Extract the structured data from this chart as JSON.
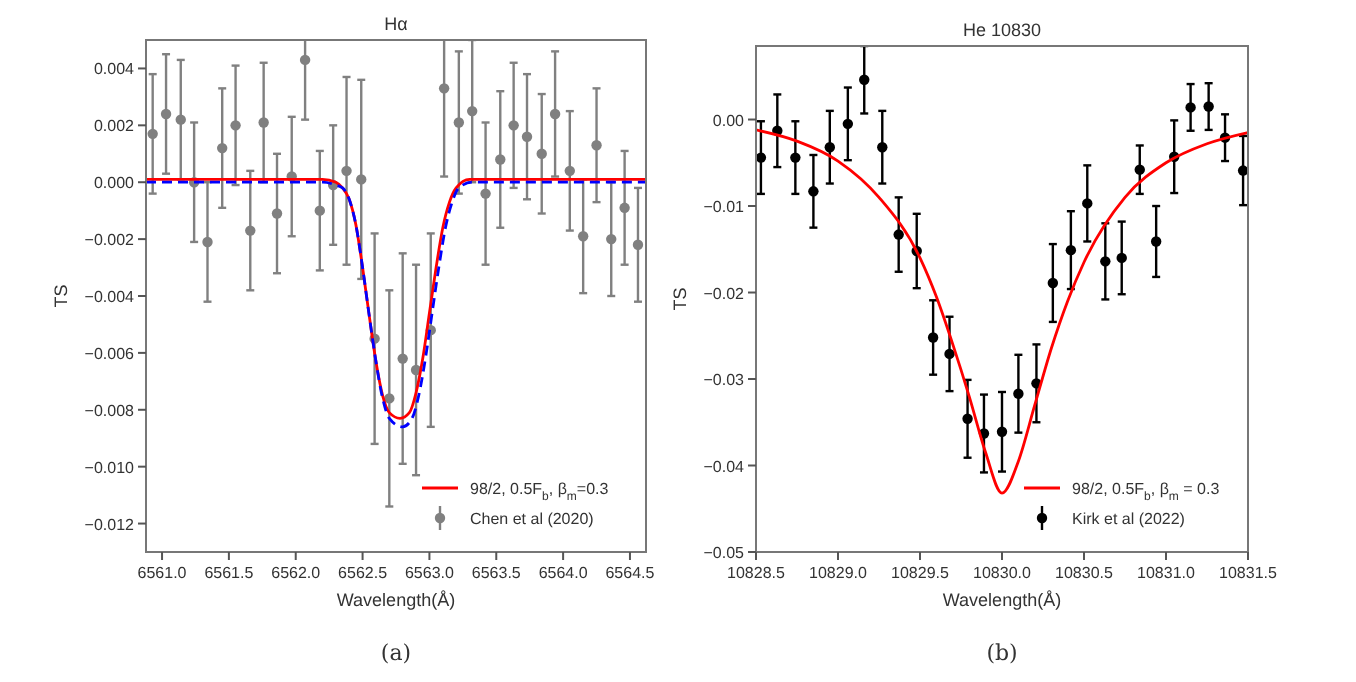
{
  "chart_data": [
    {
      "type": "scatter",
      "title": "Hα",
      "xlabel": "Wavelength(Å)",
      "ylabel": "TS",
      "annotations": [
        "(a)"
      ],
      "xlim": [
        6560.88,
        6564.62
      ],
      "ylim": [
        -0.013,
        0.005
      ],
      "xticks": [
        {
          "value": 6561,
          "label": "6561.0"
        },
        {
          "value": 6561.5,
          "label": "6561.5"
        },
        {
          "value": 6562,
          "label": "6562.0"
        },
        {
          "value": 6562.5,
          "label": "6562.5"
        },
        {
          "value": 6563,
          "label": "6563.0"
        },
        {
          "value": 6563.5,
          "label": "6563.5"
        },
        {
          "value": 6564,
          "label": "6564.0"
        },
        {
          "value": 6564.5,
          "label": "6564.5"
        }
      ],
      "yticks": [
        {
          "value": 0.004,
          "label": "0.004"
        },
        {
          "value": 0.002,
          "label": "0.002"
        },
        {
          "value": 0,
          "label": "0.000"
        },
        {
          "value": -0.002,
          "label": "−0.002"
        },
        {
          "value": -0.004,
          "label": "−0.004"
        },
        {
          "value": -0.006,
          "label": "−0.006"
        },
        {
          "value": -0.008,
          "label": "−0.008"
        },
        {
          "value": -0.01,
          "label": "−0.010"
        },
        {
          "value": -0.012,
          "label": "−0.012"
        }
      ],
      "legend": "bottom right",
      "series": [
        {
          "name": "Chen et al (2020)",
          "marker": "circle",
          "color": "#808080",
          "x": [
            6560.93,
            6561.03,
            6561.14,
            6561.24,
            6561.34,
            6561.45,
            6561.55,
            6561.66,
            6561.76,
            6561.86,
            6561.97,
            6562.07,
            6562.18,
            6562.28,
            6562.38,
            6562.49,
            6562.59,
            6562.7,
            6562.8,
            6562.9,
            6563.01,
            6563.11,
            6563.22,
            6563.32,
            6563.42,
            6563.53,
            6563.63,
            6563.73,
            6563.84,
            6563.94,
            6564.05,
            6564.15,
            6564.25,
            6564.36,
            6564.46,
            6564.56
          ],
          "values": [
            0.0017,
            0.0024,
            0.0022,
            0.0,
            -0.0021,
            0.0012,
            0.002,
            -0.0017,
            0.0021,
            -0.0011,
            0.0002,
            0.0043,
            -0.001,
            -0.0001,
            0.0004,
            0.0001,
            -0.0055,
            -0.0076,
            -0.0062,
            -0.0066,
            -0.0052,
            0.0033,
            0.0021,
            0.0025,
            -0.0004,
            0.0008,
            0.002,
            0.0016,
            0.001,
            0.0024,
            0.0004,
            -0.0019,
            0.0013,
            -0.002,
            -0.0009,
            -0.0022
          ],
          "errors": [
            0.0021,
            0.0021,
            0.0021,
            0.0021,
            0.0021,
            0.0021,
            0.0021,
            0.0021,
            0.0021,
            0.0021,
            0.0021,
            0.0021,
            0.0021,
            0.0021,
            0.0033,
            0.0035,
            0.0037,
            0.0038,
            0.0037,
            0.0037,
            0.0034,
            0.0031,
            0.0025,
            0.0025,
            0.0025,
            0.0024,
            0.0022,
            0.0022,
            0.0021,
            0.0022,
            0.0021,
            0.002,
            0.002,
            0.002,
            0.002,
            0.002
          ]
        },
        {
          "name": "98/2, 0.5F$_{b}$, β$_{m}$=0.3",
          "type": "line",
          "color": "#ff0000",
          "line_style": "solid",
          "x": [
            6560.88,
            6562.0,
            6562.2,
            6562.3,
            6562.35,
            6562.4,
            6562.45,
            6562.5,
            6562.55,
            6562.6,
            6562.65,
            6562.7,
            6562.78,
            6562.85,
            6562.9,
            6562.95,
            6563.0,
            6563.05,
            6563.1,
            6563.15,
            6563.2,
            6563.3,
            6563.5,
            6564.62
          ],
          "values": [
            0.0001,
            0.0001,
            0.0001,
            0.0,
            -0.0002,
            -0.0006,
            -0.0015,
            -0.003,
            -0.0047,
            -0.0063,
            -0.0075,
            -0.0081,
            -0.0083,
            -0.0081,
            -0.0074,
            -0.0062,
            -0.0046,
            -0.003,
            -0.0016,
            -0.0007,
            -0.0002,
            0.0001,
            0.0001,
            0.0001
          ]
        },
        {
          "type": "line",
          "color": "#0000ff",
          "line_style": "dashed",
          "x": [
            6560.88,
            6562.0,
            6562.2,
            6562.3,
            6562.35,
            6562.4,
            6562.45,
            6562.5,
            6562.55,
            6562.6,
            6562.65,
            6562.7,
            6562.8,
            6562.87,
            6562.92,
            6562.97,
            6563.02,
            6563.07,
            6563.12,
            6563.17,
            6563.22,
            6563.32,
            6563.5,
            6564.62
          ],
          "values": [
            0.0,
            0.0,
            0.0,
            -0.0001,
            -0.0002,
            -0.0006,
            -0.0015,
            -0.003,
            -0.0047,
            -0.0063,
            -0.0076,
            -0.0083,
            -0.0086,
            -0.0083,
            -0.0075,
            -0.0062,
            -0.0046,
            -0.003,
            -0.0016,
            -0.0007,
            -0.0002,
            0.0,
            0.0,
            0.0
          ]
        }
      ]
    },
    {
      "type": "scatter",
      "title": "He 10830",
      "xlabel": "Wavelength(Å)",
      "ylabel": "TS",
      "annotations": [
        "(b)"
      ],
      "xlim": [
        10828.5,
        10831.5
      ],
      "ylim": [
        -0.05,
        0.0085
      ],
      "xticks": [
        {
          "value": 10828.5,
          "label": "10828.5"
        },
        {
          "value": 10829,
          "label": "10829.0"
        },
        {
          "value": 10829.5,
          "label": "10829.5"
        },
        {
          "value": 10830,
          "label": "10830.0"
        },
        {
          "value": 10830.5,
          "label": "10830.5"
        },
        {
          "value": 10831,
          "label": "10831.0"
        },
        {
          "value": 10831.5,
          "label": "10831.5"
        }
      ],
      "yticks": [
        {
          "value": 0,
          "label": "0.00"
        },
        {
          "value": -0.01,
          "label": "−0.01"
        },
        {
          "value": -0.02,
          "label": "−0.02"
        },
        {
          "value": -0.03,
          "label": "−0.03"
        },
        {
          "value": -0.04,
          "label": "−0.04"
        },
        {
          "value": -0.05,
          "label": "−0.05"
        }
      ],
      "legend": "bottom right",
      "series": [
        {
          "name": "Kirk et al (2022)",
          "marker": "circle",
          "color": "#000000",
          "x": [
            10828.53,
            10828.63,
            10828.74,
            10828.85,
            10828.95,
            10829.06,
            10829.16,
            10829.27,
            10829.37,
            10829.48,
            10829.58,
            10829.68,
            10829.79,
            10829.89,
            10830.0,
            10830.1,
            10830.21,
            10830.31,
            10830.42,
            10830.52,
            10830.63,
            10830.73,
            10830.84,
            10830.94,
            10831.05,
            10831.15,
            10831.26,
            10831.36,
            10831.47
          ],
          "values": [
            -0.0044,
            -0.0013,
            -0.0044,
            -0.0083,
            -0.0032,
            -0.0005,
            0.0046,
            -0.0032,
            -0.0133,
            -0.0152,
            -0.0252,
            -0.0271,
            -0.0346,
            -0.0363,
            -0.0361,
            -0.0317,
            -0.0305,
            -0.0189,
            -0.0151,
            -0.0097,
            -0.0164,
            -0.016,
            -0.0058,
            -0.0141,
            -0.0043,
            0.0014,
            0.0015,
            -0.0021,
            -0.0059
          ],
          "errors": [
            0.0042,
            0.0042,
            0.0042,
            0.0042,
            0.0042,
            0.0042,
            0.0039,
            0.0042,
            0.0043,
            0.0043,
            0.0043,
            0.0043,
            0.0045,
            0.0045,
            0.0046,
            0.0045,
            0.0045,
            0.0045,
            0.0045,
            0.0044,
            0.0044,
            0.0042,
            0.0028,
            0.0041,
            0.0042,
            0.0027,
            0.0027,
            0.0027,
            0.004
          ]
        },
        {
          "name": "98/2, 0.5F$_{b}$, β$_{m}$ = 0.3",
          "type": "line",
          "color": "#ff0000",
          "line_style": "solid",
          "x": [
            10828.5,
            10828.75,
            10829.0,
            10829.25,
            10829.5,
            10829.6,
            10829.7,
            10829.8,
            10829.9,
            10830.0,
            10830.1,
            10830.2,
            10830.3,
            10830.4,
            10830.5,
            10830.75,
            10831.0,
            10831.25,
            10831.5
          ],
          "values": [
            -0.0012,
            -0.0025,
            -0.0048,
            -0.009,
            -0.016,
            -0.0205,
            -0.026,
            -0.032,
            -0.0385,
            -0.0432,
            -0.0395,
            -0.033,
            -0.0265,
            -0.021,
            -0.0165,
            -0.009,
            -0.005,
            -0.0028,
            -0.0015
          ]
        }
      ]
    }
  ]
}
